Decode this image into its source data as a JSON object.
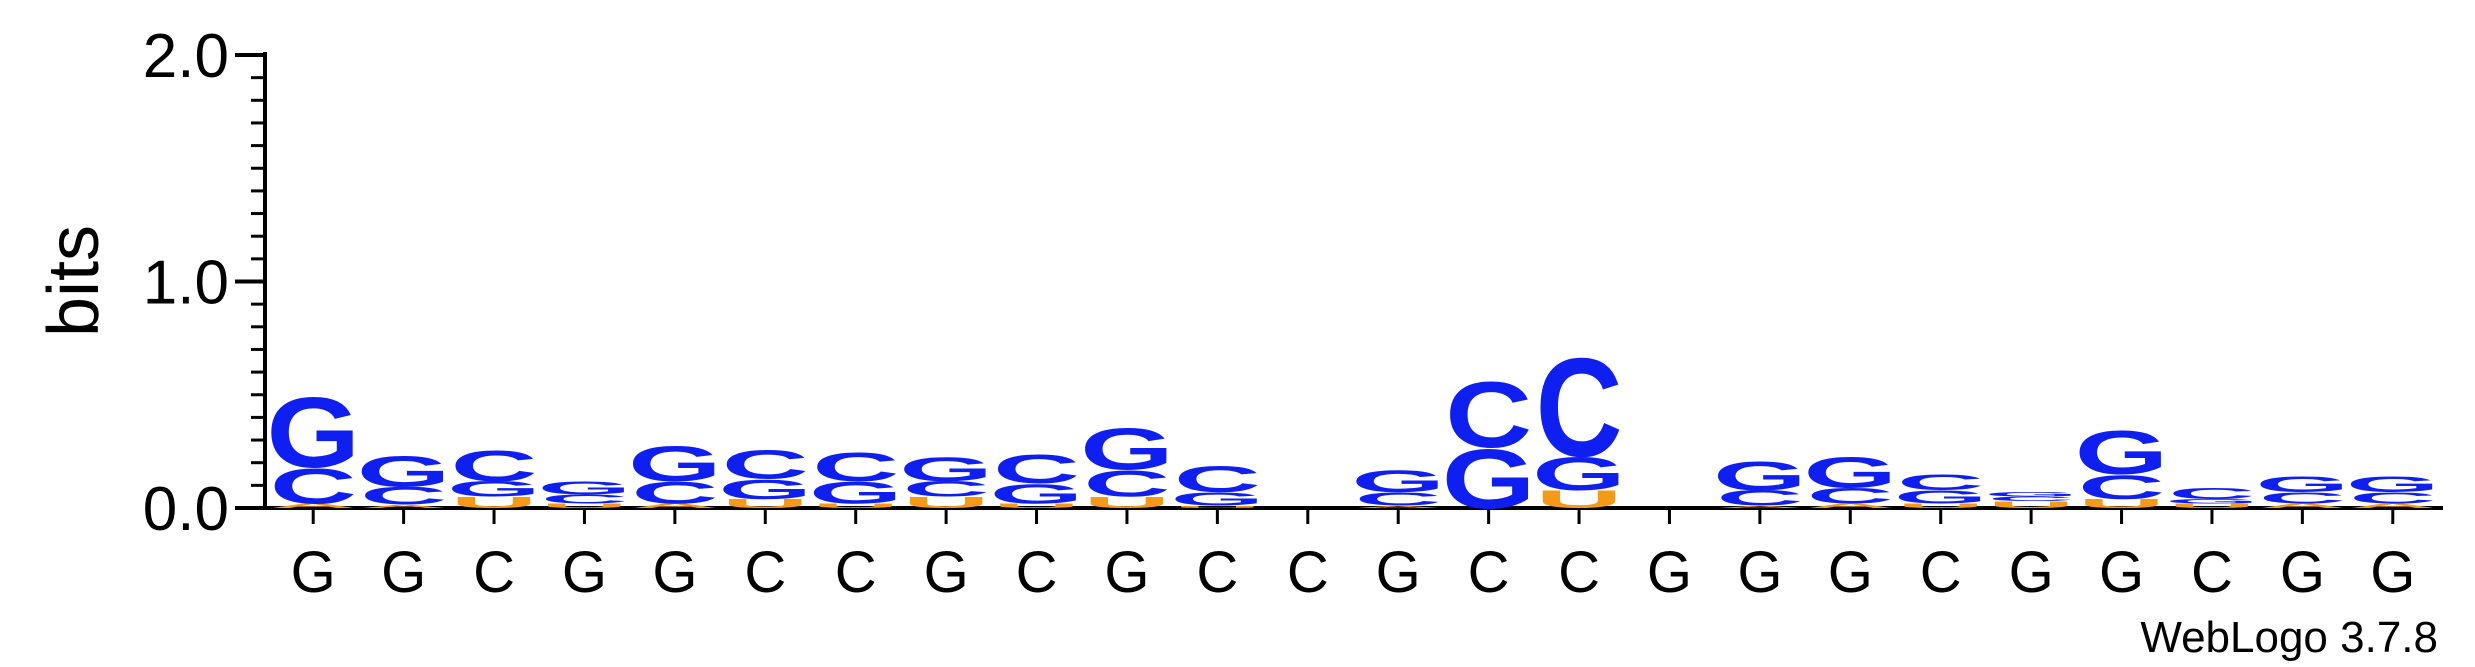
{
  "chart_data": {
    "type": "sequence-logo",
    "ylabel": "bits",
    "ylim": [
      0,
      2.0
    ],
    "yticks": [
      "0.0",
      "1.0",
      "2.0"
    ],
    "yticks_values": [
      0,
      1.0,
      2.0
    ],
    "grid": false,
    "watermark": "WebLogo 3.7.8",
    "colors": {
      "G": "#0f1ff0",
      "C": "#0f1ff0",
      "A": "#f59a18",
      "U": "#f59a18"
    },
    "positions": [
      {
        "label": "G",
        "stack": [
          [
            "A",
            0.02
          ],
          [
            "C",
            0.16
          ],
          [
            "G",
            0.32
          ]
        ]
      },
      {
        "label": "G",
        "stack": [
          [
            "A",
            0.015
          ],
          [
            "C",
            0.08
          ],
          [
            "G",
            0.14
          ]
        ]
      },
      {
        "label": "C",
        "stack": [
          [
            "U",
            0.05
          ],
          [
            "G",
            0.07
          ],
          [
            "C",
            0.14
          ]
        ]
      },
      {
        "label": "G",
        "stack": [
          [
            "U",
            0.02
          ],
          [
            "C",
            0.04
          ],
          [
            "G",
            0.06
          ]
        ]
      },
      {
        "label": "G",
        "stack": [
          [
            "A",
            0.02
          ],
          [
            "C",
            0.1
          ],
          [
            "G",
            0.16
          ]
        ]
      },
      {
        "label": "C",
        "stack": [
          [
            "U",
            0.04
          ],
          [
            "G",
            0.09
          ],
          [
            "C",
            0.13
          ]
        ]
      },
      {
        "label": "C",
        "stack": [
          [
            "U",
            0.02
          ],
          [
            "G",
            0.1
          ],
          [
            "C",
            0.13
          ]
        ]
      },
      {
        "label": "G",
        "stack": [
          [
            "U",
            0.05
          ],
          [
            "C",
            0.07
          ],
          [
            "G",
            0.11
          ]
        ]
      },
      {
        "label": "C",
        "stack": [
          [
            "U",
            0.02
          ],
          [
            "G",
            0.09
          ],
          [
            "C",
            0.13
          ]
        ]
      },
      {
        "label": "G",
        "stack": [
          [
            "U",
            0.05
          ],
          [
            "C",
            0.12
          ],
          [
            "G",
            0.19
          ]
        ]
      },
      {
        "label": "C",
        "stack": [
          [
            "U",
            0.01
          ],
          [
            "G",
            0.06
          ],
          [
            "C",
            0.12
          ]
        ]
      },
      {
        "label": "C",
        "stack": []
      },
      {
        "label": "G",
        "stack": [
          [
            "A",
            0.01
          ],
          [
            "C",
            0.06
          ],
          [
            "G",
            0.1
          ]
        ]
      },
      {
        "label": "C",
        "stack": [
          [
            "G",
            0.27
          ],
          [
            "C",
            0.3
          ]
        ]
      },
      {
        "label": "C",
        "stack": [
          [
            "U",
            0.08
          ],
          [
            "G",
            0.15
          ],
          [
            "C",
            0.45
          ]
        ]
      },
      {
        "label": "G",
        "stack": []
      },
      {
        "label": "G",
        "stack": [
          [
            "A",
            0.01
          ],
          [
            "C",
            0.07
          ],
          [
            "G",
            0.13
          ]
        ]
      },
      {
        "label": "G",
        "stack": [
          [
            "A",
            0.02
          ],
          [
            "C",
            0.07
          ],
          [
            "G",
            0.14
          ]
        ]
      },
      {
        "label": "C",
        "stack": [
          [
            "U",
            0.02
          ],
          [
            "G",
            0.06
          ],
          [
            "C",
            0.07
          ]
        ]
      },
      {
        "label": "G",
        "stack": [
          [
            "U",
            0.03
          ],
          [
            "C",
            0.02
          ],
          [
            "G",
            0.02
          ]
        ]
      },
      {
        "label": "G",
        "stack": [
          [
            "U",
            0.04
          ],
          [
            "C",
            0.11
          ],
          [
            "G",
            0.2
          ]
        ]
      },
      {
        "label": "C",
        "stack": [
          [
            "U",
            0.02
          ],
          [
            "G",
            0.02
          ],
          [
            "C",
            0.05
          ]
        ]
      },
      {
        "label": "G",
        "stack": [
          [
            "A",
            0.02
          ],
          [
            "C",
            0.05
          ],
          [
            "G",
            0.07
          ]
        ]
      },
      {
        "label": "G",
        "stack": [
          [
            "A",
            0.02
          ],
          [
            "C",
            0.05
          ],
          [
            "G",
            0.07
          ]
        ]
      }
    ]
  }
}
